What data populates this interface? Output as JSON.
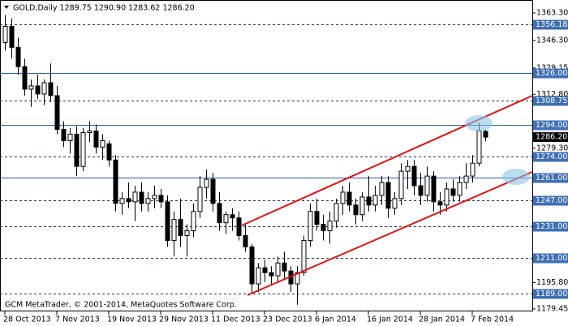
{
  "chart_data": {
    "type": "candlestick",
    "title": "GOLD,Daily  1289.75 1290.90 1283.62 1286.20",
    "copyright": "GCM MetaTrader, © 2001-2014, MetaQuotes Software Corp.",
    "categories": [
      "28 Oct 2013",
      null,
      null,
      null,
      null,
      null,
      null,
      null,
      "7 Nov 2013",
      null,
      null,
      null,
      null,
      null,
      null,
      null,
      "19 Nov 2013",
      null,
      null,
      null,
      null,
      null,
      null,
      null,
      "29 Nov 2013",
      null,
      null,
      null,
      null,
      null,
      null,
      null,
      "11 Dec 2013",
      null,
      null,
      null,
      null,
      null,
      null,
      null,
      "23 Dec 2013",
      null,
      null,
      null,
      null,
      null,
      null,
      null,
      "6 Jan 2014",
      null,
      null,
      null,
      null,
      null,
      null,
      null,
      "16 Jan 2014",
      null,
      null,
      null,
      null,
      null,
      null,
      null,
      "28 Jan 2014",
      null,
      null,
      null,
      null,
      null,
      null,
      null,
      "7 Feb 2014",
      null,
      null
    ],
    "open": [
      1345,
      1355,
      1342,
      1330,
      1316,
      1318,
      1313,
      1320,
      1312,
      1291,
      1284,
      1288,
      1268,
      1289,
      1290,
      1280,
      1282,
      1272,
      1245,
      1248,
      1246,
      1252,
      1245,
      1248,
      1250,
      1246,
      1222,
      1235,
      1225,
      1228,
      1240,
      1255,
      1260,
      1245,
      1233,
      1238,
      1236,
      1225,
      1218,
      1195,
      1205,
      1202,
      1200,
      1208,
      1203,
      1195,
      1202,
      1222,
      1240,
      1232,
      1228,
      1234,
      1245,
      1252,
      1244,
      1238,
      1249,
      1244,
      1250,
      1258,
      1242,
      1248,
      1265,
      1268,
      1256,
      1250,
      1262,
      1246,
      1244,
      1254,
      1250,
      1258,
      1262,
      1270,
      1289.75
    ],
    "high": [
      1362,
      1360,
      1348,
      1335,
      1322,
      1325,
      1322,
      1332,
      1318,
      1296,
      1292,
      1293,
      1292,
      1296,
      1294,
      1288,
      1284,
      1275,
      1252,
      1258,
      1256,
      1258,
      1252,
      1256,
      1254,
      1250,
      1240,
      1248,
      1232,
      1245,
      1262,
      1266,
      1264,
      1252,
      1240,
      1242,
      1240,
      1232,
      1220,
      1208,
      1210,
      1206,
      1212,
      1215,
      1206,
      1206,
      1225,
      1245,
      1248,
      1238,
      1240,
      1248,
      1256,
      1258,
      1248,
      1252,
      1262,
      1256,
      1262,
      1262,
      1252,
      1270,
      1272,
      1272,
      1264,
      1268,
      1265,
      1252,
      1258,
      1260,
      1262,
      1270,
      1275,
      1295,
      1290.9
    ],
    "low": [
      1340,
      1335,
      1325,
      1312,
      1305,
      1310,
      1306,
      1308,
      1288,
      1280,
      1276,
      1262,
      1265,
      1283,
      1276,
      1272,
      1268,
      1240,
      1238,
      1242,
      1234,
      1240,
      1240,
      1242,
      1242,
      1218,
      1212,
      1218,
      1212,
      1224,
      1236,
      1248,
      1240,
      1228,
      1226,
      1228,
      1222,
      1215,
      1189,
      1190,
      1196,
      1194,
      1196,
      1198,
      1190,
      1182,
      1200,
      1218,
      1228,
      1222,
      1220,
      1230,
      1238,
      1240,
      1232,
      1234,
      1240,
      1240,
      1244,
      1236,
      1238,
      1244,
      1254,
      1250,
      1244,
      1246,
      1240,
      1238,
      1240,
      1246,
      1246,
      1254,
      1258,
      1268,
      1283.62
    ],
    "close": [
      1355,
      1342,
      1330,
      1316,
      1318,
      1313,
      1320,
      1312,
      1291,
      1284,
      1288,
      1268,
      1289,
      1290,
      1280,
      1284,
      1272,
      1245,
      1248,
      1246,
      1252,
      1245,
      1248,
      1250,
      1246,
      1222,
      1235,
      1225,
      1228,
      1240,
      1255,
      1260,
      1245,
      1233,
      1238,
      1236,
      1225,
      1218,
      1195,
      1205,
      1202,
      1200,
      1208,
      1203,
      1195,
      1202,
      1222,
      1240,
      1232,
      1228,
      1234,
      1245,
      1252,
      1244,
      1238,
      1249,
      1244,
      1250,
      1258,
      1242,
      1248,
      1265,
      1268,
      1256,
      1250,
      1262,
      1246,
      1244,
      1254,
      1250,
      1258,
      1262,
      1270,
      1290,
      1286.2
    ],
    "last_label": "1286.20",
    "bull_color": "#ffffff",
    "bear_color": "#000000",
    "wick_color": "#000000",
    "ylim": [
      1177.9,
      1370.9
    ],
    "yticks": [
      {
        "value": 1363.3,
        "label": "1363.30"
      },
      {
        "value": 1346.3,
        "label": "1346.30"
      },
      {
        "value": 1329.15,
        "label": "1329.15"
      },
      {
        "value": 1312.8,
        "label": "1312.80"
      },
      {
        "value": 1279.3,
        "label": "1279.30"
      },
      {
        "value": 1195.8,
        "label": "1195.80"
      },
      {
        "value": 1179.45,
        "label": "1179.45"
      }
    ],
    "levels": [
      {
        "value": 1356.18,
        "label": "1356.18",
        "style": "dashed",
        "color": "#1f2f6b"
      },
      {
        "value": 1326,
        "label": "1326.00",
        "style": "solid",
        "color": "#2a5db0"
      },
      {
        "value": 1308.75,
        "label": "1308.75",
        "style": "dashed",
        "color": "#1f2f6b"
      },
      {
        "value": 1294,
        "label": "1294.00",
        "style": "solid",
        "color": "#2a5db0"
      },
      {
        "value": 1274,
        "label": "1274.00",
        "style": "dashed",
        "color": "#1f2f6b"
      },
      {
        "value": 1261,
        "label": "1261.00",
        "style": "solid",
        "color": "#2a5db0"
      },
      {
        "value": 1247,
        "label": "1247.00",
        "style": "dashed",
        "color": "#1f2f6b"
      },
      {
        "value": 1231,
        "label": "1231.00",
        "style": "dashed",
        "color": "#1f2f6b"
      },
      {
        "value": 1211,
        "label": "1211.00",
        "style": "dashed",
        "color": "#1f2f6b"
      },
      {
        "value": 1189,
        "label": "1189.00",
        "style": "dashed",
        "color": "#1f2f6b"
      }
    ]
  }
}
